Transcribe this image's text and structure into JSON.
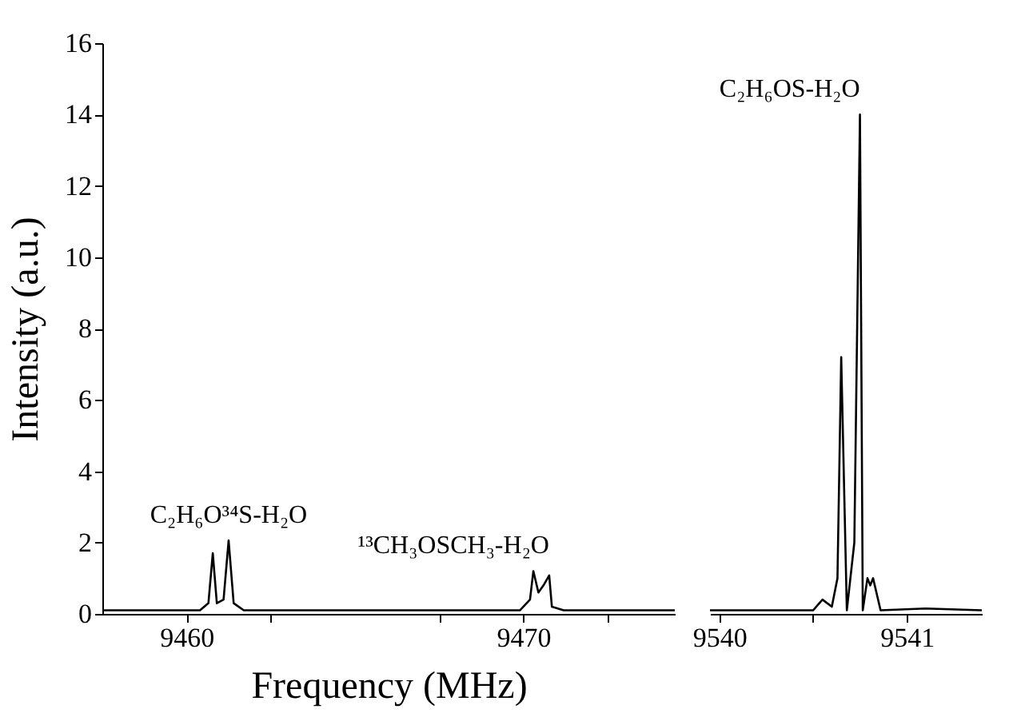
{
  "chart_data": [
    {
      "type": "line",
      "xlabel": "Frequency (MHz)",
      "ylabel": "Intensity (a.u.)",
      "xlim": [
        9457.5,
        9474.5
      ],
      "ylim": [
        0,
        16
      ],
      "xticks": [
        9460,
        {
          "value": 9462.5,
          "label": null
        },
        {
          "value": 9467.5,
          "label": null
        },
        9470,
        {
          "value": 9472.5,
          "label": null
        }
      ],
      "yticks": [
        0,
        2,
        4,
        6,
        8,
        10,
        12,
        14,
        16
      ],
      "grid": false,
      "annotations": [
        {
          "text": "C₂H₆O³⁴S-H₂O",
          "x": 9461.25,
          "y": 2.06
        },
        {
          "text": "¹³CH₃OSCH₃-H₂O",
          "x": 9470.77,
          "y": 1.2
        }
      ],
      "series": [
        {
          "color": "#000000",
          "x": [
            9457.5,
            9460.4,
            9460.65,
            9460.78,
            9460.9,
            9461.1,
            9461.25,
            9461.4,
            9461.7,
            9469.9,
            9470.2,
            9470.3,
            9470.45,
            9470.6,
            9470.77,
            9470.85,
            9471.2,
            9474.5
          ],
          "values": [
            0.1,
            0.1,
            0.3,
            1.7,
            0.3,
            0.4,
            2.06,
            0.3,
            0.1,
            0.1,
            0.4,
            1.2,
            0.6,
            0.8,
            1.08,
            0.2,
            0.1,
            0.1
          ]
        }
      ]
    },
    {
      "type": "line",
      "xlim": [
        9539.95,
        9541.4
      ],
      "ylim": [
        0,
        16
      ],
      "xticks": [
        9540,
        {
          "value": 9540.5,
          "label": null
        },
        9541
      ],
      "tick_labels": "x",
      "grid": false,
      "annotations": [
        {
          "text": "C₂H₆OS-H₂O",
          "x": 9540.75,
          "y": 14.0
        }
      ],
      "series": [
        {
          "color": "#000000",
          "x": [
            9539.95,
            9540.5,
            9540.55,
            9540.6,
            9540.63,
            9540.65,
            9540.68,
            9540.72,
            9540.75,
            9540.765,
            9540.79,
            9540.805,
            9540.82,
            9540.86,
            9541.1,
            9541.4
          ],
          "values": [
            0.1,
            0.1,
            0.4,
            0.2,
            1.0,
            7.2,
            0.1,
            2.0,
            14.0,
            0.1,
            1.0,
            0.8,
            1.0,
            0.1,
            0.15,
            0.1
          ]
        }
      ]
    }
  ]
}
